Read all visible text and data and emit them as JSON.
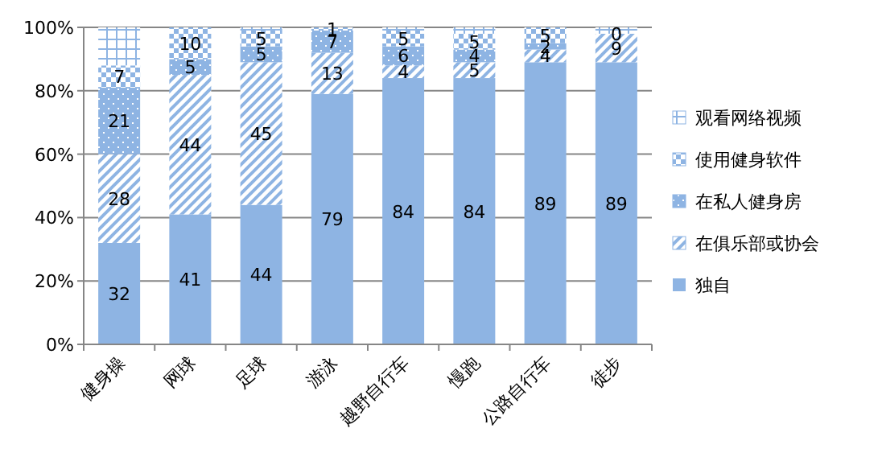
{
  "chart_data": {
    "type": "bar",
    "stacked": true,
    "categories": [
      "健身操",
      "网球",
      "足球",
      "游泳",
      "越野自行车",
      "慢跑",
      "公路自行车",
      "徒步"
    ],
    "series": [
      {
        "name": "独自",
        "color": "#8eb4e3",
        "values": [
          32,
          41,
          44,
          79,
          84,
          84,
          89,
          89
        ],
        "value_labels": [
          "32",
          "41",
          "44",
          "79",
          "84",
          "84",
          "89",
          "89"
        ]
      },
      {
        "name": "在俱乐部或协会",
        "color": "#8eb4e3",
        "values": [
          28,
          44,
          45,
          13,
          4,
          5,
          4,
          9
        ],
        "value_labels": [
          "28",
          "44",
          "45",
          "13",
          "4",
          "5",
          "4",
          "9"
        ]
      },
      {
        "name": "在私人健身房",
        "color": "#8eb4e3",
        "values": [
          21,
          5,
          5,
          7,
          6,
          4,
          2,
          0
        ],
        "value_labels": [
          "21",
          "5",
          "5",
          "7",
          "6",
          "4",
          "2",
          null
        ]
      },
      {
        "name": "使用健身软件",
        "color": "#8eb4e3",
        "values": [
          7,
          10,
          5,
          1,
          5,
          5,
          5,
          0
        ],
        "value_labels": [
          "7",
          "10",
          "5",
          "1",
          "5",
          "5",
          "5",
          "0"
        ]
      },
      {
        "name": "观看网络视频",
        "color": "#8eb4e3",
        "values": [
          12,
          0,
          1,
          0,
          1,
          2,
          0,
          2
        ],
        "value_labels": [
          null,
          null,
          null,
          null,
          null,
          null,
          null,
          null
        ]
      }
    ],
    "ylim": [
      0,
      100
    ],
    "yticks": [
      {
        "value": 0,
        "label": "0%"
      },
      {
        "value": 20,
        "label": "20%"
      },
      {
        "value": 40,
        "label": "40%"
      },
      {
        "value": 60,
        "label": "60%"
      },
      {
        "value": 80,
        "label": "80%"
      },
      {
        "value": 100,
        "label": "100%"
      }
    ],
    "grid": "y",
    "legend": "right"
  }
}
